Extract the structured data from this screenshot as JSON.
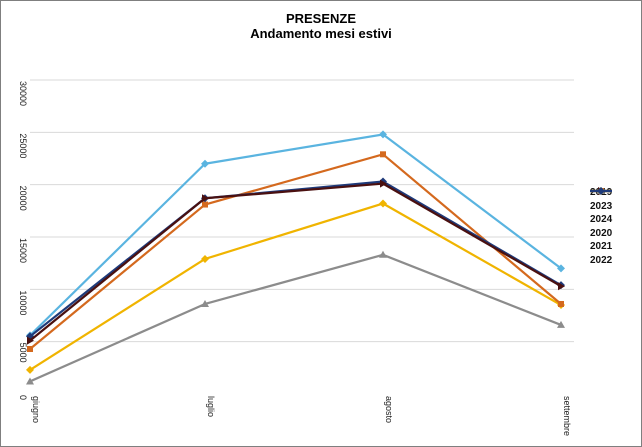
{
  "chart_data": {
    "type": "line",
    "title": "PRESENZE",
    "subtitle": "Andamento mesi estivi",
    "categories": [
      "giugno",
      "luglio",
      "agosto",
      "settembre"
    ],
    "ylim": [
      0,
      30000
    ],
    "yticks": [
      "0",
      "5000",
      "10000",
      "15000",
      "20000",
      "25000",
      "30000"
    ],
    "grid": true,
    "legend_position": "right",
    "series": [
      {
        "name": "2019",
        "color": "#d4691e",
        "marker": "square",
        "values": [
          4300,
          18100,
          22900,
          8600
        ]
      },
      {
        "name": "2023",
        "color": "#4a1010",
        "marker": "triangle-right",
        "values": [
          5100,
          18700,
          20100,
          10300
        ]
      },
      {
        "name": "2024",
        "color": "#5ab4e0",
        "marker": "diamond",
        "values": [
          5600,
          22000,
          24800,
          12000
        ]
      },
      {
        "name": "2020",
        "color": "#8c8c8c",
        "marker": "triangle",
        "values": [
          1200,
          8600,
          13300,
          6600
        ]
      },
      {
        "name": "2021",
        "color": "#f0b400",
        "marker": "diamond",
        "values": [
          2300,
          12900,
          18200,
          8500
        ]
      },
      {
        "name": "2022",
        "color": "#1e3a7a",
        "marker": "diamond",
        "values": [
          5500,
          18700,
          20300,
          10400
        ]
      }
    ]
  }
}
